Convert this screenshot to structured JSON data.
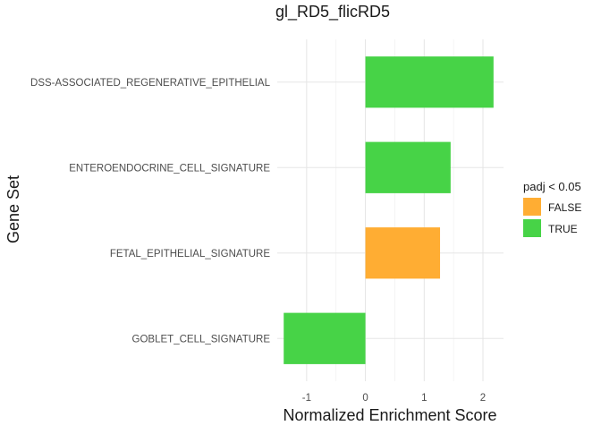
{
  "chart_data": {
    "type": "bar",
    "orientation": "horizontal",
    "title": "gl_RD5_flicRD5",
    "xlabel": "Normalized Enrichment Score",
    "ylabel": "Gene Set",
    "xlim": [
      -1.5,
      2.35
    ],
    "x_ticks": [
      -1,
      0,
      1,
      2
    ],
    "x_tick_labels": [
      "-1",
      "0",
      "1",
      "2"
    ],
    "grid": true,
    "legend": {
      "title": "padj < 0.05",
      "placement": "right",
      "entries": [
        {
          "label": "FALSE",
          "color": "#FFAD33"
        },
        {
          "label": "TRUE",
          "color": "#47D347"
        }
      ]
    },
    "bars": [
      {
        "category": "DSS-ASSOCIATED_REGENERATIVE_EPITHELIAL",
        "value": 2.18,
        "padj_lt_005": "TRUE"
      },
      {
        "category": "ENTEROENDOCRINE_CELL_SIGNATURE",
        "value": 1.45,
        "padj_lt_005": "TRUE"
      },
      {
        "category": "FETAL_EPITHELIAL_SIGNATURE",
        "value": 1.27,
        "padj_lt_005": "FALSE"
      },
      {
        "category": "GOBLET_CELL_SIGNATURE",
        "value": -1.39,
        "padj_lt_005": "TRUE"
      }
    ]
  }
}
